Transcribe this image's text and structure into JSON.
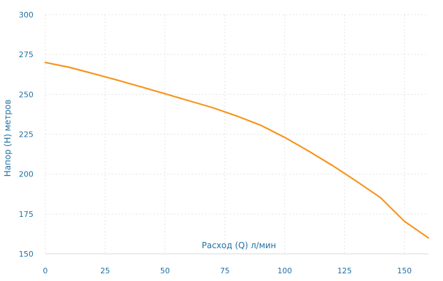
{
  "chart_data": {
    "type": "line",
    "title": "",
    "xlabel": "Расход (Q) л/мин",
    "ylabel": "Напор (H) метров",
    "xlim": [
      0,
      160
    ],
    "ylim": [
      150,
      300
    ],
    "xticks": [
      0,
      25,
      50,
      75,
      100,
      125,
      150
    ],
    "yticks": [
      150,
      175,
      200,
      225,
      250,
      275,
      300
    ],
    "xtick_labels": [
      "0",
      "25",
      "50",
      "75",
      "100",
      "125",
      "150"
    ],
    "ytick_labels": [
      "150",
      "175",
      "200",
      "225",
      "250",
      "275",
      "300"
    ],
    "grid": true,
    "legend": "none",
    "series": [
      {
        "color": "#f7941d",
        "x": [
          0,
          10,
          20,
          30,
          40,
          50,
          60,
          70,
          80,
          90,
          100,
          110,
          120,
          130,
          140,
          145,
          150,
          160
        ],
        "y": [
          270,
          267,
          263,
          259,
          254.7,
          250.4,
          246,
          241.6,
          236.4,
          230.6,
          223,
          214.4,
          205.3,
          195.5,
          185.2,
          177.8,
          170.4,
          160
        ]
      }
    ]
  }
}
